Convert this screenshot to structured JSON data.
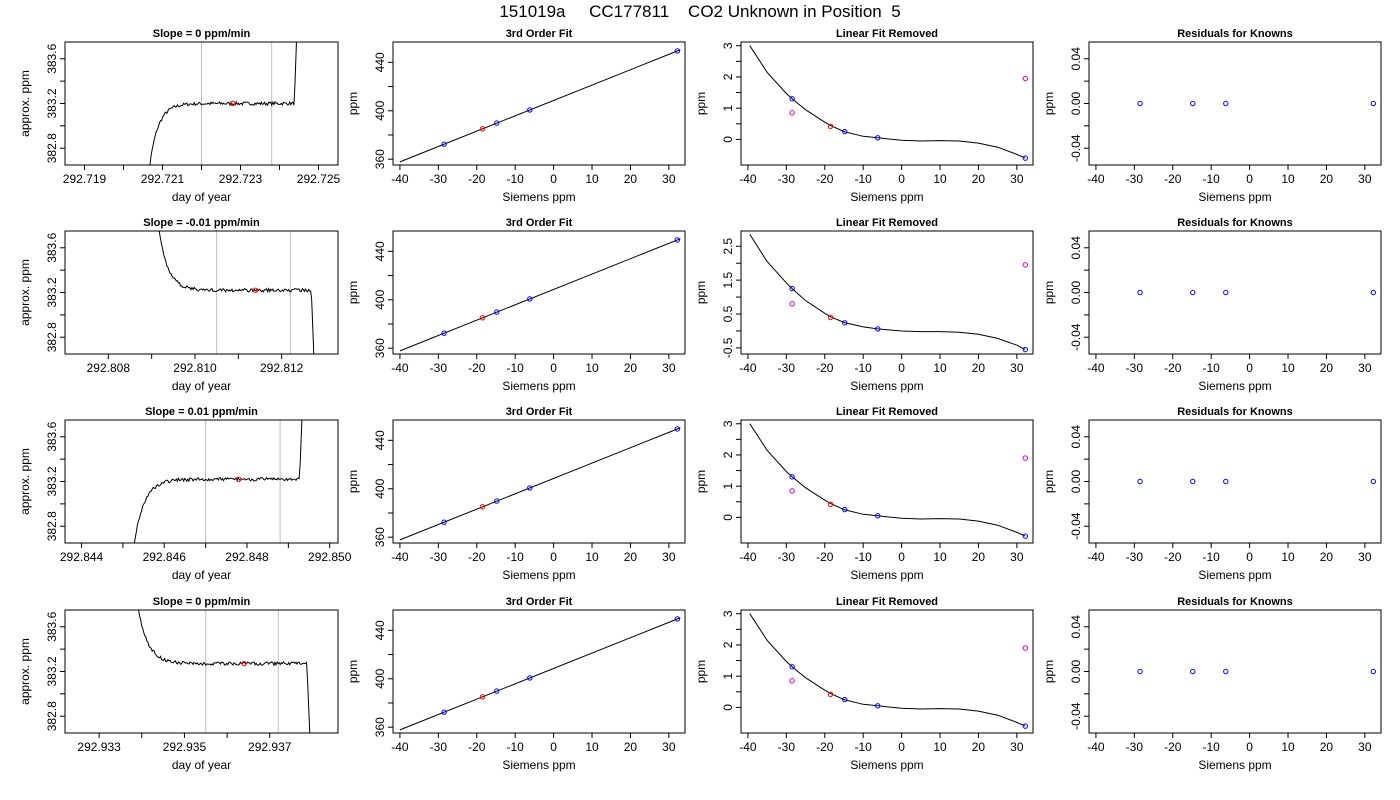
{
  "figure": {
    "title": "151019a     CC177811    CO2 Unknown in Position  5",
    "colors": {
      "line": "#000000",
      "known": "#0000ff",
      "unknown": "#ff0000",
      "cylinder": "#cc00cc",
      "vline": "#bebebe"
    }
  },
  "rows": [
    {
      "trace": {
        "type": "line",
        "title": "Slope =  0  ppm/min",
        "xlabel": "day of year",
        "ylabel": "approx. ppm",
        "xlim": [
          292.7185,
          292.7255
        ],
        "ylim": [
          382.65,
          383.75
        ],
        "xticks": [
          292.719,
          292.721,
          292.723,
          292.725
        ],
        "xtick_labels": [
          "292.719",
          "292.721",
          "292.723",
          "292.725"
        ],
        "yticks": [
          382.8,
          383.2,
          383.6
        ],
        "ytick_labels": [
          "382.8",
          "383.2",
          "383.6"
        ],
        "vlines": [
          292.722,
          292.7238
        ],
        "entry": 292.7205,
        "exit": 292.7245,
        "level": 383.2,
        "marker": {
          "x": 292.7228,
          "y": 383.2
        }
      },
      "fit": {
        "type": "line",
        "title": "3rd Order Fit",
        "xlabel": "Siemens ppm",
        "ylabel": "ppm",
        "xlim": [
          -41.8,
          34.2
        ],
        "ylim": [
          355.2,
          456.8
        ],
        "xticks": [
          -40,
          -30,
          -20,
          -10,
          0,
          10,
          20,
          30
        ],
        "yticks": [
          360,
          400,
          440
        ],
        "line": {
          "x": [
            -40,
            33
          ],
          "y": [
            357.8,
            450.4
          ]
        },
        "knowns": [
          {
            "x": -28.5,
            "y": 372.4
          },
          {
            "x": -14.8,
            "y": 389.8
          },
          {
            "x": -6.2,
            "y": 400.7
          },
          {
            "x": 32.2,
            "y": 449.4
          }
        ],
        "unknowns": [
          {
            "x": -18.5,
            "y": 385.1
          }
        ]
      },
      "linear_removed": {
        "type": "line",
        "title": "Linear Fit Removed",
        "xlabel": "Siemens ppm",
        "ylabel": "ppm",
        "xlim": [
          -41.8,
          34.2
        ],
        "ylim": [
          -0.82,
          3.12
        ],
        "xticks": [
          -40,
          -30,
          -20,
          -10,
          0,
          10,
          20,
          30
        ],
        "yticks": [
          0,
          1,
          2,
          3
        ],
        "ytick_labels": [
          "0",
          "1",
          "2",
          "3"
        ],
        "curve": {
          "x": [
            -39.5,
            -35,
            -30,
            -28.5,
            -25,
            -20,
            -18.5,
            -15,
            -10,
            -6.2,
            0,
            5,
            10,
            15,
            20,
            25,
            30,
            32.2
          ],
          "y": [
            3.0,
            2.15,
            1.47,
            1.3,
            0.95,
            0.55,
            0.45,
            0.25,
            0.1,
            0.05,
            -0.03,
            -0.05,
            -0.04,
            -0.05,
            -0.12,
            -0.25,
            -0.48,
            -0.6
          ]
        },
        "knowns": [
          {
            "x": -28.5,
            "y": 1.3
          },
          {
            "x": -14.8,
            "y": 0.25
          },
          {
            "x": -6.2,
            "y": 0.05
          },
          {
            "x": 32.2,
            "y": -0.6
          }
        ],
        "unknowns": [
          {
            "x": -18.5,
            "y": 0.42
          }
        ],
        "cylinders": [
          {
            "x": -28.5,
            "y": 0.85
          },
          {
            "x": 32.2,
            "y": 1.95
          }
        ]
      },
      "residuals": {
        "type": "scatter",
        "title": "Residuals for Knowns",
        "xlabel": "Siemens ppm",
        "ylabel": "ppm",
        "xlim": [
          -41.8,
          34.2
        ],
        "ylim": [
          -0.055,
          0.055
        ],
        "xticks": [
          -40,
          -30,
          -20,
          -10,
          0,
          10,
          20,
          30
        ],
        "yticks": [
          -0.04,
          0.0,
          0.04
        ],
        "ytick_labels": [
          "-0.04",
          "0.00",
          "0.04"
        ],
        "points": [
          {
            "x": -28.5,
            "y": 0
          },
          {
            "x": -14.8,
            "y": 0
          },
          {
            "x": -6.2,
            "y": 0
          },
          {
            "x": 32.2,
            "y": 0
          }
        ]
      }
    },
    {
      "trace": {
        "type": "line",
        "title": "Slope =  -0.01  ppm/min",
        "xlabel": "day of year",
        "ylabel": "approx. ppm",
        "xlim": [
          292.807,
          292.8133
        ],
        "ylim": [
          382.65,
          383.75
        ],
        "xticks": [
          292.808,
          292.81,
          292.812
        ],
        "xtick_labels": [
          "292.808",
          "292.810",
          "292.812"
        ],
        "yticks": [
          382.8,
          383.2,
          383.6
        ],
        "ytick_labels": [
          "382.8",
          "383.2",
          "383.6"
        ],
        "vlines": [
          292.8105,
          292.8122
        ],
        "entry": 292.809,
        "exit": 292.8128,
        "level": 383.22,
        "marker": {
          "x": 292.8114,
          "y": 383.22
        }
      },
      "fit": {
        "type": "line",
        "title": "3rd Order Fit",
        "xlabel": "Siemens ppm",
        "ylabel": "ppm",
        "xlim": [
          -41.8,
          34.2
        ],
        "ylim": [
          355.2,
          456.8
        ],
        "xticks": [
          -40,
          -30,
          -20,
          -10,
          0,
          10,
          20,
          30
        ],
        "yticks": [
          360,
          400,
          440
        ],
        "line": {
          "x": [
            -40,
            33
          ],
          "y": [
            357.8,
            450.4
          ]
        },
        "knowns": [
          {
            "x": -28.5,
            "y": 372.4
          },
          {
            "x": -14.8,
            "y": 389.8
          },
          {
            "x": -6.2,
            "y": 400.7
          },
          {
            "x": 32.2,
            "y": 449.4
          }
        ],
        "unknowns": [
          {
            "x": -18.5,
            "y": 385.1
          }
        ]
      },
      "linear_removed": {
        "type": "line",
        "title": "Linear Fit Removed",
        "xlabel": "Siemens ppm",
        "ylabel": "ppm",
        "xlim": [
          -41.8,
          34.2
        ],
        "ylim": [
          -0.68,
          2.95
        ],
        "xticks": [
          -40,
          -30,
          -20,
          -10,
          0,
          10,
          20,
          30
        ],
        "yticks": [
          -0.5,
          0.5,
          1.5,
          2.5
        ],
        "ytick_labels": [
          "-0.5",
          "0.5",
          "1.5",
          "2.5"
        ],
        "curve": {
          "x": [
            -39.5,
            -35,
            -30,
            -28.5,
            -25,
            -20,
            -18.5,
            -15,
            -10,
            -6.2,
            0,
            5,
            10,
            15,
            20,
            25,
            30,
            32.2
          ],
          "y": [
            2.85,
            2.05,
            1.42,
            1.25,
            0.9,
            0.52,
            0.42,
            0.25,
            0.12,
            0.06,
            0.0,
            -0.02,
            -0.02,
            -0.04,
            -0.1,
            -0.22,
            -0.42,
            -0.55
          ]
        },
        "knowns": [
          {
            "x": -28.5,
            "y": 1.25
          },
          {
            "x": -14.8,
            "y": 0.24
          },
          {
            "x": -6.2,
            "y": 0.06
          },
          {
            "x": 32.2,
            "y": -0.55
          }
        ],
        "unknowns": [
          {
            "x": -18.5,
            "y": 0.4
          }
        ],
        "cylinders": [
          {
            "x": -28.5,
            "y": 0.8
          },
          {
            "x": 32.2,
            "y": 1.95
          }
        ]
      },
      "residuals": {
        "type": "scatter",
        "title": "Residuals for Knowns",
        "xlabel": "Siemens ppm",
        "ylabel": "ppm",
        "xlim": [
          -41.8,
          34.2
        ],
        "ylim": [
          -0.055,
          0.055
        ],
        "xticks": [
          -40,
          -30,
          -20,
          -10,
          0,
          10,
          20,
          30
        ],
        "yticks": [
          -0.04,
          0.0,
          0.04
        ],
        "ytick_labels": [
          "-0.04",
          "0.00",
          "0.04"
        ],
        "points": [
          {
            "x": -28.5,
            "y": 0
          },
          {
            "x": -14.8,
            "y": 0
          },
          {
            "x": -6.2,
            "y": 0
          },
          {
            "x": 32.2,
            "y": 0
          }
        ]
      }
    },
    {
      "trace": {
        "type": "line",
        "title": "Slope =  0.01  ppm/min",
        "xlabel": "day of year",
        "ylabel": "approx. ppm",
        "xlim": [
          292.8436,
          292.8502
        ],
        "ylim": [
          382.65,
          383.75
        ],
        "xticks": [
          292.844,
          292.846,
          292.848,
          292.85
        ],
        "xtick_labels": [
          "292.844",
          "292.846",
          "292.848",
          "292.850"
        ],
        "yticks": [
          382.8,
          383.2,
          383.6
        ],
        "ytick_labels": [
          "382.8",
          "383.2",
          "383.6"
        ],
        "vlines": [
          292.847,
          292.8488
        ],
        "entry": 292.8451,
        "exit": 292.8494,
        "level": 383.22,
        "marker": {
          "x": 292.8478,
          "y": 383.22
        }
      },
      "fit": {
        "type": "line",
        "title": "3rd Order Fit",
        "xlabel": "Siemens ppm",
        "ylabel": "ppm",
        "xlim": [
          -41.8,
          34.2
        ],
        "ylim": [
          355.2,
          456.8
        ],
        "xticks": [
          -40,
          -30,
          -20,
          -10,
          0,
          10,
          20,
          30
        ],
        "yticks": [
          360,
          400,
          440
        ],
        "line": {
          "x": [
            -40,
            33
          ],
          "y": [
            357.8,
            450.4
          ]
        },
        "knowns": [
          {
            "x": -28.5,
            "y": 372.4
          },
          {
            "x": -14.8,
            "y": 389.8
          },
          {
            "x": -6.2,
            "y": 400.7
          },
          {
            "x": 32.2,
            "y": 449.4
          }
        ],
        "unknowns": [
          {
            "x": -18.5,
            "y": 385.1
          }
        ]
      },
      "linear_removed": {
        "type": "line",
        "title": "Linear Fit Removed",
        "xlabel": "Siemens ppm",
        "ylabel": "ppm",
        "xlim": [
          -41.8,
          34.2
        ],
        "ylim": [
          -0.82,
          3.12
        ],
        "xticks": [
          -40,
          -30,
          -20,
          -10,
          0,
          10,
          20,
          30
        ],
        "yticks": [
          0,
          1,
          2,
          3
        ],
        "ytick_labels": [
          "0",
          "1",
          "2",
          "3"
        ],
        "curve": {
          "x": [
            -39.5,
            -35,
            -30,
            -28.5,
            -25,
            -20,
            -18.5,
            -15,
            -10,
            -6.2,
            0,
            5,
            10,
            15,
            20,
            25,
            30,
            32.2
          ],
          "y": [
            3.0,
            2.15,
            1.47,
            1.3,
            0.95,
            0.55,
            0.45,
            0.25,
            0.1,
            0.05,
            -0.03,
            -0.05,
            -0.04,
            -0.05,
            -0.12,
            -0.25,
            -0.48,
            -0.6
          ]
        },
        "knowns": [
          {
            "x": -28.5,
            "y": 1.3
          },
          {
            "x": -14.8,
            "y": 0.25
          },
          {
            "x": -6.2,
            "y": 0.05
          },
          {
            "x": 32.2,
            "y": -0.6
          }
        ],
        "unknowns": [
          {
            "x": -18.5,
            "y": 0.42
          }
        ],
        "cylinders": [
          {
            "x": -28.5,
            "y": 0.85
          },
          {
            "x": 32.2,
            "y": 1.9
          }
        ]
      },
      "residuals": {
        "type": "scatter",
        "title": "Residuals for Knowns",
        "xlabel": "Siemens ppm",
        "ylabel": "ppm",
        "xlim": [
          -41.8,
          34.2
        ],
        "ylim": [
          -0.055,
          0.055
        ],
        "xticks": [
          -40,
          -30,
          -20,
          -10,
          0,
          10,
          20,
          30
        ],
        "yticks": [
          -0.04,
          0.0,
          0.04
        ],
        "ytick_labels": [
          "-0.04",
          "0.00",
          "0.04"
        ],
        "points": [
          {
            "x": -28.5,
            "y": 0
          },
          {
            "x": -14.8,
            "y": 0
          },
          {
            "x": -6.2,
            "y": 0
          },
          {
            "x": 32.2,
            "y": 0
          }
        ]
      }
    },
    {
      "trace": {
        "type": "line",
        "title": "Slope =  0  ppm/min",
        "xlabel": "day of year",
        "ylabel": "approx. ppm",
        "xlim": [
          292.9322,
          292.9386
        ],
        "ylim": [
          382.65,
          383.75
        ],
        "xticks": [
          292.933,
          292.935,
          292.937
        ],
        "xtick_labels": [
          "292.933",
          "292.935",
          "292.937"
        ],
        "yticks": [
          382.8,
          383.2,
          383.6
        ],
        "ytick_labels": [
          "382.8",
          "383.2",
          "383.6"
        ],
        "vlines": [
          292.9355,
          292.9372
        ],
        "entry": 292.9337,
        "exit": 292.938,
        "level": 383.27,
        "marker": {
          "x": 292.9364,
          "y": 383.27
        }
      },
      "fit": {
        "type": "line",
        "title": "3rd Order Fit",
        "xlabel": "Siemens ppm",
        "ylabel": "ppm",
        "xlim": [
          -41.8,
          34.2
        ],
        "ylim": [
          355.2,
          456.8
        ],
        "xticks": [
          -40,
          -30,
          -20,
          -10,
          0,
          10,
          20,
          30
        ],
        "yticks": [
          360,
          400,
          440
        ],
        "line": {
          "x": [
            -40,
            33
          ],
          "y": [
            357.8,
            450.4
          ]
        },
        "knowns": [
          {
            "x": -28.5,
            "y": 372.4
          },
          {
            "x": -14.8,
            "y": 389.8
          },
          {
            "x": -6.2,
            "y": 400.7
          },
          {
            "x": 32.2,
            "y": 449.4
          }
        ],
        "unknowns": [
          {
            "x": -18.5,
            "y": 385.1
          }
        ]
      },
      "linear_removed": {
        "type": "line",
        "title": "Linear Fit Removed",
        "xlabel": "Siemens ppm",
        "ylabel": "ppm",
        "xlim": [
          -41.8,
          34.2
        ],
        "ylim": [
          -0.82,
          3.12
        ],
        "xticks": [
          -40,
          -30,
          -20,
          -10,
          0,
          10,
          20,
          30
        ],
        "yticks": [
          0,
          1,
          2,
          3
        ],
        "ytick_labels": [
          "0",
          "1",
          "2",
          "3"
        ],
        "curve": {
          "x": [
            -39.5,
            -35,
            -30,
            -28.5,
            -25,
            -20,
            -18.5,
            -15,
            -10,
            -6.2,
            0,
            5,
            10,
            15,
            20,
            25,
            30,
            32.2
          ],
          "y": [
            3.0,
            2.15,
            1.47,
            1.3,
            0.95,
            0.55,
            0.45,
            0.25,
            0.1,
            0.05,
            -0.03,
            -0.05,
            -0.04,
            -0.05,
            -0.12,
            -0.25,
            -0.48,
            -0.6
          ]
        },
        "knowns": [
          {
            "x": -28.5,
            "y": 1.3
          },
          {
            "x": -14.8,
            "y": 0.25
          },
          {
            "x": -6.2,
            "y": 0.05
          },
          {
            "x": 32.2,
            "y": -0.6
          }
        ],
        "unknowns": [
          {
            "x": -18.5,
            "y": 0.42
          }
        ],
        "cylinders": [
          {
            "x": -28.5,
            "y": 0.85
          },
          {
            "x": 32.2,
            "y": 1.9
          }
        ]
      },
      "residuals": {
        "type": "scatter",
        "title": "Residuals for Knowns",
        "xlabel": "Siemens ppm",
        "ylabel": "ppm",
        "xlim": [
          -41.8,
          34.2
        ],
        "ylim": [
          -0.055,
          0.055
        ],
        "xticks": [
          -40,
          -30,
          -20,
          -10,
          0,
          10,
          20,
          30
        ],
        "yticks": [
          -0.04,
          0.0,
          0.04
        ],
        "ytick_labels": [
          "-0.04",
          "0.00",
          "0.04"
        ],
        "points": [
          {
            "x": -28.5,
            "y": 0
          },
          {
            "x": -14.8,
            "y": 0
          },
          {
            "x": -6.2,
            "y": 0
          },
          {
            "x": 32.2,
            "y": 0
          }
        ]
      }
    }
  ]
}
